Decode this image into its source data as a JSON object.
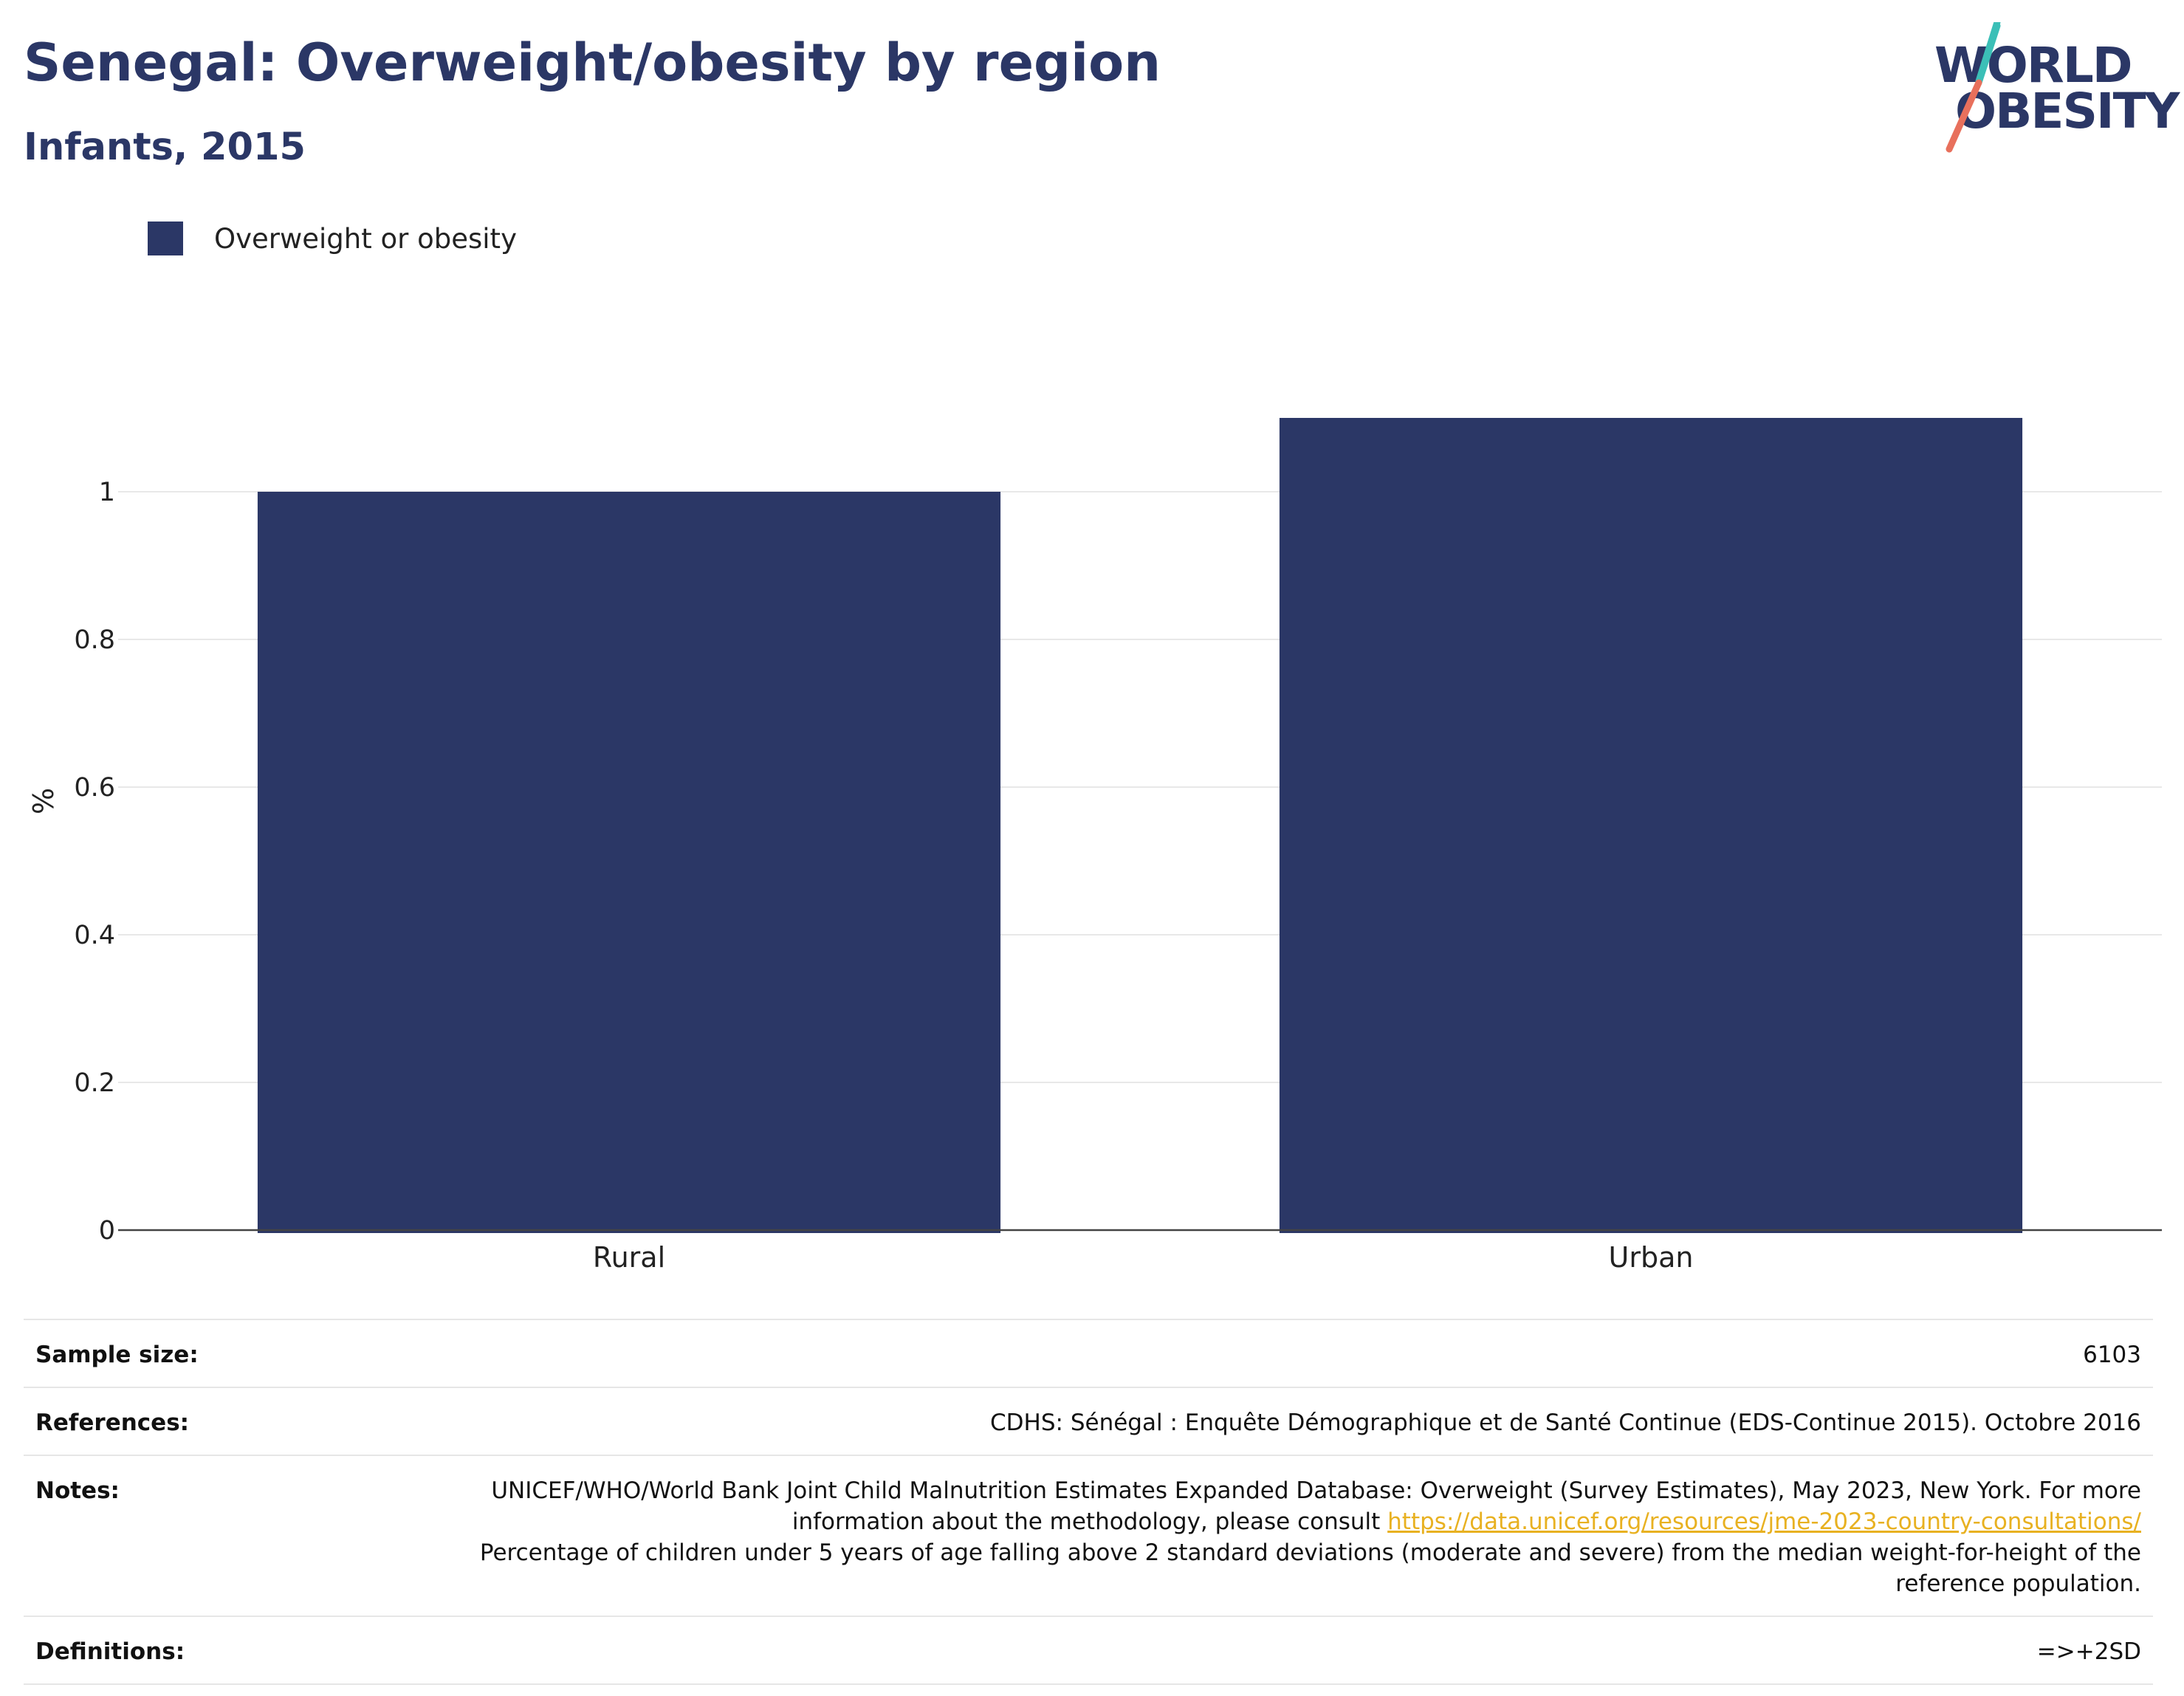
{
  "header": {
    "title": "Senegal: Overweight/obesity by region",
    "subtitle": "Infants, 2015"
  },
  "logo": {
    "line1": "WORLD",
    "line2": "OBESITY",
    "colors": {
      "text": "#2b3766",
      "slash_top": "#3bbfb7",
      "slash_bottom": "#e8705c"
    }
  },
  "legend": {
    "items": [
      {
        "label": "Overweight or obesity",
        "color": "#2b3766"
      }
    ]
  },
  "chart_data": {
    "type": "bar",
    "categories": [
      "Rural",
      "Urban"
    ],
    "series": [
      {
        "name": "Overweight or obesity",
        "values": [
          1.0,
          1.1
        ],
        "color": "#2b3766"
      }
    ],
    "ylabel": "%",
    "xlabel": "",
    "ylim": [
      0,
      1.2
    ],
    "yticks": [
      0,
      0.2,
      0.4,
      0.6,
      0.8,
      1
    ],
    "ytick_labels": [
      "0",
      "0.2",
      "0.4",
      "0.6",
      "0.8",
      "1"
    ],
    "grid": true,
    "legend_position": "top-left"
  },
  "meta": {
    "sample_size_label": "Sample size:",
    "sample_size_value": "6103",
    "references_label": "References:",
    "references_value": "CDHS: Sénégal : Enquête Démographique et de Santé Continue (EDS-Continue 2015). Octobre 2016",
    "notes_label": "Notes:",
    "notes_text_1": "UNICEF/WHO/World Bank Joint Child Malnutrition Estimates Expanded Database: Overweight (Survey Estimates), May 2023, New York. For more information about the methodology, please consult",
    "notes_link": "https://data.unicef.org/resources/jme-2023-country-consultations/",
    "notes_text_2": "Percentage of children under 5 years of age falling above 2 standard deviations (moderate and severe) from the median weight-for-height of the reference population.",
    "definitions_label": "Definitions:",
    "definitions_value": "=>+2SD",
    "link_color": "#e8b121"
  }
}
